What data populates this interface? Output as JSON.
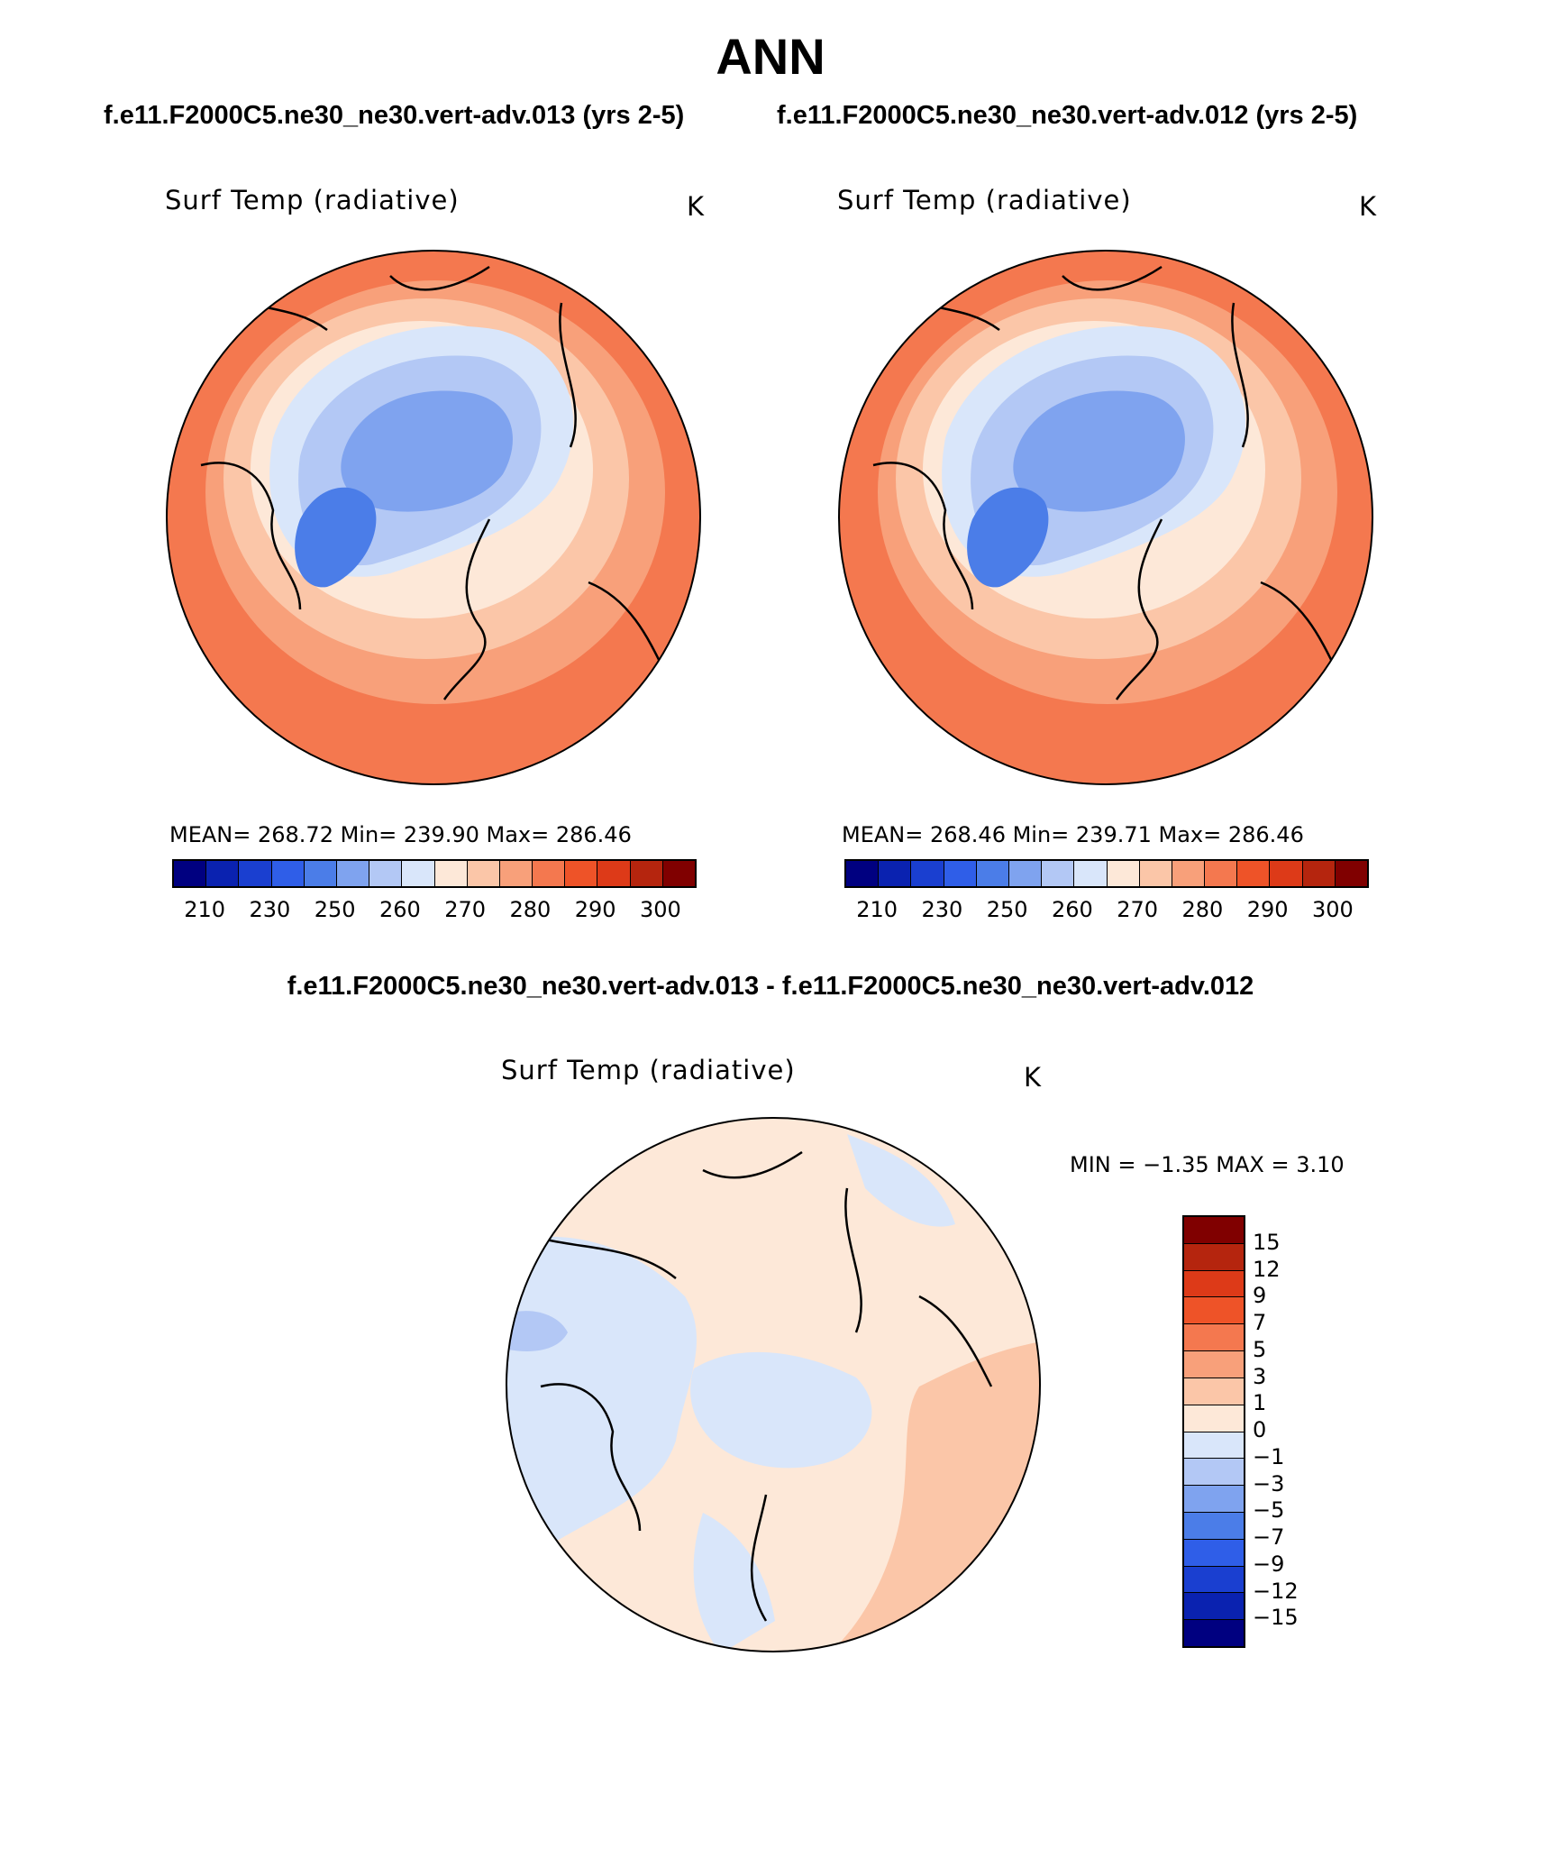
{
  "title": "ANN",
  "case_left": "f.e11.F2000C5.ne30_ne30.vert-adv.013 (yrs 2-5)",
  "case_right": "f.e11.F2000C5.ne30_ne30.vert-adv.012 (yrs 2-5)",
  "diff_title": "f.e11.F2000C5.ne30_ne30.vert-adv.013 - f.e11.F2000C5.ne30_ne30.vert-adv.012",
  "panels": [
    {
      "label": "Surf Temp (radiative)",
      "units": "K",
      "stats": "MEAN= 268.72   Min= 239.90   Max= 286.46"
    },
    {
      "label": "Surf Temp (radiative)",
      "units": "K",
      "stats": "MEAN= 268.46   Min= 239.71   Max= 286.46"
    },
    {
      "label": "Surf Temp (radiative)",
      "units": "K",
      "stats": "MIN =   −1.35  MAX =     3.10"
    }
  ],
  "abs_colorbar": {
    "colors": [
      "#000080",
      "#0a22b0",
      "#1a3fd0",
      "#2f5ee8",
      "#4b7de8",
      "#7fa3ef",
      "#b3c8f5",
      "#d9e6fa",
      "#fde8d8",
      "#fbc6a8",
      "#f8a07a",
      "#f4784f",
      "#ee5328",
      "#dd3a18",
      "#b5250e",
      "#800000"
    ],
    "ticks": [
      "210",
      "230",
      "250",
      "260",
      "270",
      "280",
      "290",
      "300"
    ]
  },
  "diff_colorbar": {
    "colors": [
      "#800000",
      "#b5250e",
      "#dd3a18",
      "#ee5328",
      "#f4784f",
      "#f8a07a",
      "#fbc6a8",
      "#fde8d8",
      "#d9e6fa",
      "#b3c8f5",
      "#7fa3ef",
      "#4b7de8",
      "#2f5ee8",
      "#1a3fd0",
      "#0a22b0",
      "#000080"
    ],
    "ticks": [
      "15",
      "12",
      "9",
      "7",
      "5",
      "3",
      "1",
      "0",
      "−1",
      "−3",
      "−5",
      "−7",
      "−9",
      "−12",
      "−15"
    ]
  },
  "map_colors": {
    "outer": "#f4784f",
    "mid": "#f8a07a",
    "light": "#fbc6a8",
    "pale": "#fde8d8",
    "cold1": "#d9e6fa",
    "cold2": "#b3c8f5",
    "cold3": "#7fa3ef",
    "cold4": "#4b7de8",
    "diff_base": "#fde8d8",
    "diff_neg": "#d9e6fa",
    "diff_pos": "#fbc6a8",
    "diff_neg2": "#b3c8f5"
  }
}
